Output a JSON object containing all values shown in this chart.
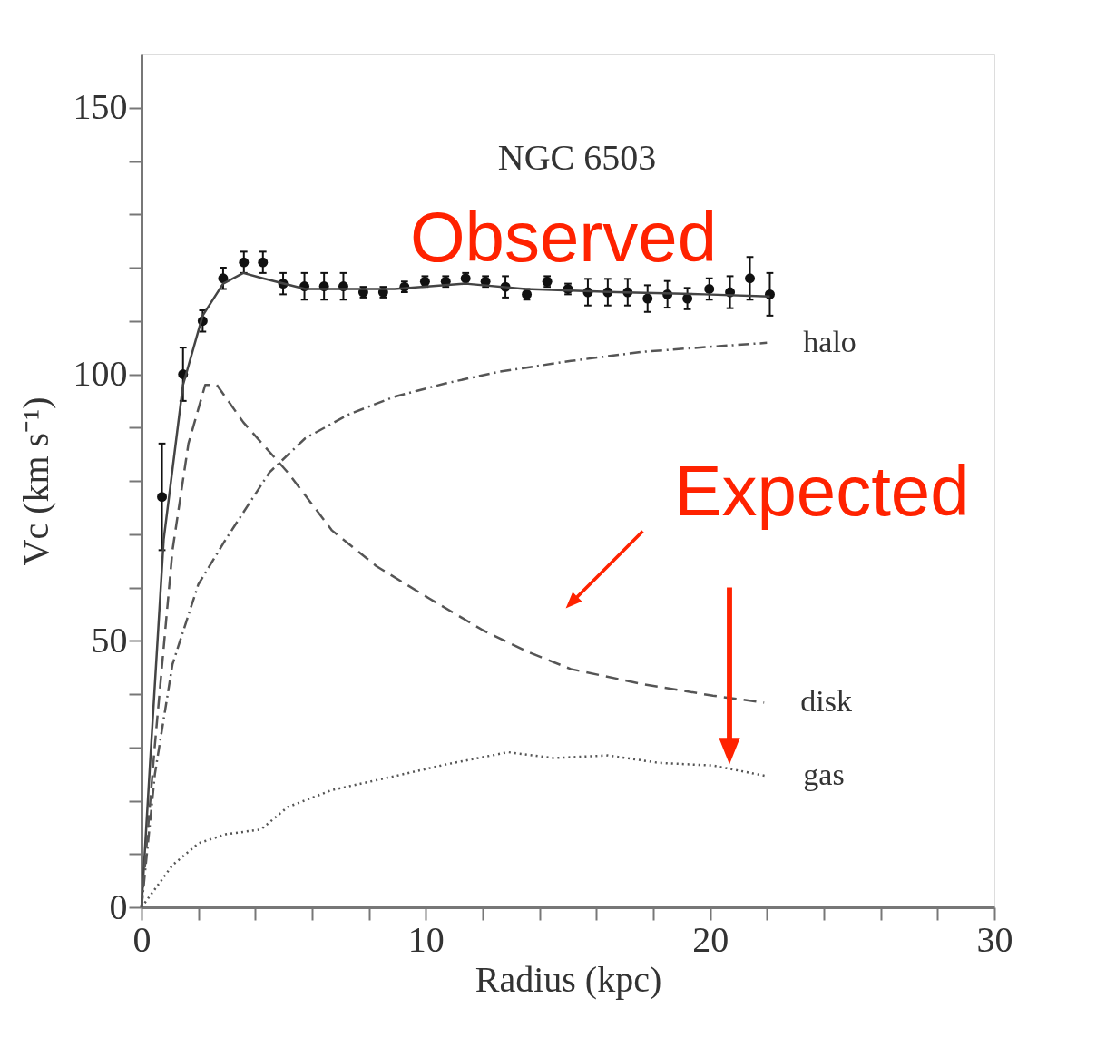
{
  "chart_data": {
    "type": "line",
    "xlabel": "Radius (kpc)",
    "ylabel": "Vc (km s⁻¹)",
    "xlim": [
      0,
      30
    ],
    "ylim": [
      0,
      160
    ],
    "xticks": [
      0,
      {
        "value": 2,
        "label": null
      },
      {
        "value": 4,
        "label": null
      },
      {
        "value": 6,
        "label": null
      },
      {
        "value": 8,
        "label": null
      },
      10,
      {
        "value": 12,
        "label": null
      },
      {
        "value": 14,
        "label": null
      },
      {
        "value": 16,
        "label": null
      },
      {
        "value": 18,
        "label": null
      },
      20,
      {
        "value": 22,
        "label": null
      },
      {
        "value": 24,
        "label": null
      },
      {
        "value": 26,
        "label": null
      },
      {
        "value": 28,
        "label": null
      },
      30
    ],
    "yticks": [
      0,
      {
        "value": 10,
        "label": null
      },
      {
        "value": 20,
        "label": null
      },
      {
        "value": 30,
        "label": null
      },
      {
        "value": 40,
        "label": null
      },
      50,
      {
        "value": 60,
        "label": null
      },
      {
        "value": 70,
        "label": null
      },
      {
        "value": 80,
        "label": null
      },
      {
        "value": 90,
        "label": null
      },
      100,
      {
        "value": 110,
        "label": null
      },
      {
        "value": 120,
        "label": null
      },
      {
        "value": 130,
        "label": null
      },
      {
        "value": 140,
        "label": null
      },
      150
    ],
    "grid": false,
    "annotations": [
      "NGC 6503",
      "Observed",
      "Expected"
    ],
    "series": [
      {
        "type": "scatter",
        "marker": "circle",
        "color": "#111111",
        "x": [
          0.72,
          1.46,
          2.15,
          2.87,
          3.6,
          4.27,
          4.98,
          5.73,
          6.42,
          7.1,
          7.8,
          8.5,
          9.25,
          9.97,
          10.7,
          11.4,
          12.1,
          12.8,
          13.55,
          14.27,
          15.0,
          15.7,
          16.4,
          17.1,
          17.8,
          18.5,
          19.2,
          19.97,
          20.7,
          21.4,
          22.1
        ],
        "values": [
          77,
          100,
          110,
          118,
          121,
          121,
          117,
          116.5,
          116.5,
          116.5,
          115.4,
          115.4,
          116.4,
          117.4,
          117.4,
          118,
          117.4,
          116.4,
          115,
          117.4,
          116,
          115.4,
          115.4,
          115.4,
          114.2,
          115,
          114.2,
          116,
          115.4,
          118,
          115
        ],
        "errors": [
          10,
          5,
          2,
          2,
          2,
          2,
          2,
          2.5,
          2.5,
          2.5,
          1,
          1,
          1,
          1,
          1,
          1,
          1,
          2,
          1,
          1,
          1,
          2.5,
          2.5,
          2.5,
          2.5,
          2.5,
          2,
          2,
          3,
          4,
          4
        ]
      },
      {
        "line_style": "solid",
        "color": "#444444",
        "x": [
          0,
          0.3,
          0.78,
          1.46,
          2.15,
          2.87,
          3.58,
          4.27,
          5.76,
          8.9,
          11.4,
          13.5,
          16.7,
          19.8,
          22.1
        ],
        "values": [
          0,
          27,
          69,
          98,
          111,
          117,
          119,
          118,
          116,
          116,
          117,
          116,
          115.4,
          115,
          114.6
        ]
      },
      {
        "name": "halo",
        "line_style": "dashdot",
        "color": "#555555",
        "x": [
          0,
          0.47,
          1.09,
          2.0,
          2.96,
          4.5,
          5.76,
          7.3,
          8.9,
          10.7,
          12.6,
          15.1,
          17.6,
          20.1,
          22.0
        ],
        "values": [
          0,
          25,
          45.6,
          60.6,
          69,
          81.6,
          88,
          92.5,
          95.8,
          98.3,
          100.5,
          102.5,
          104.2,
          105.2,
          105.9
        ]
      },
      {
        "name": "disk",
        "line_style": "dashed",
        "color": "#555555",
        "x": [
          0,
          0.47,
          1.09,
          1.65,
          2.24,
          2.65,
          3.58,
          5.14,
          6.7,
          8.26,
          10.1,
          12.0,
          13.55,
          15.1,
          17.6,
          20.1,
          21.9
        ],
        "values": [
          0,
          30.5,
          67,
          87,
          98,
          98,
          91,
          81.6,
          70.7,
          64,
          58,
          52,
          48,
          44.7,
          41.9,
          39.7,
          38.4
        ]
      },
      {
        "name": "gas",
        "line_style": "dotted",
        "color": "#555555",
        "x": [
          0,
          1.09,
          2.0,
          2.96,
          4.2,
          5.14,
          6.7,
          8.9,
          10.7,
          12.9,
          14.5,
          16.4,
          18.2,
          20.1,
          22.0
        ],
        "values": [
          0,
          7.9,
          12,
          13.7,
          14.6,
          18.8,
          22,
          24.6,
          26.8,
          29.1,
          28,
          28.5,
          27.1,
          26.6,
          24.6
        ]
      }
    ]
  }
}
